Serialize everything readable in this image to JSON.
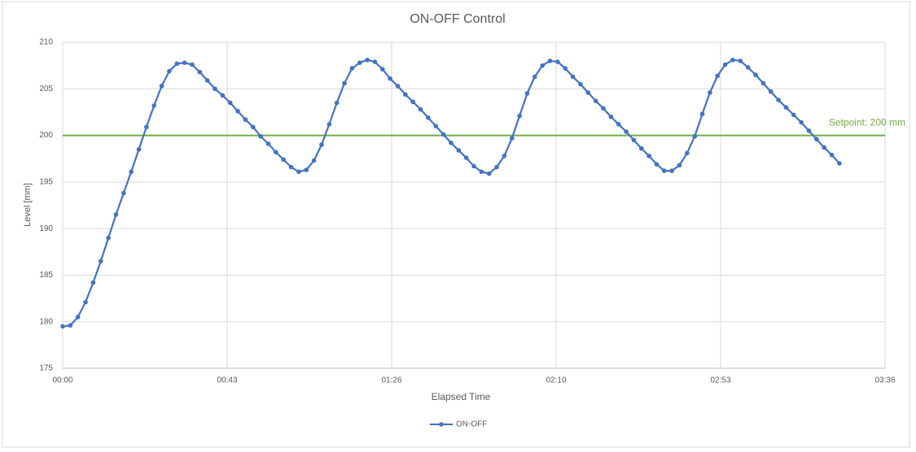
{
  "chart_data": {
    "type": "line",
    "title": "ON-OFF Control",
    "x_label": "Elapsed Time",
    "y_label": "Level [mm]",
    "xlim": [
      0,
      216
    ],
    "xticks": [
      {
        "value": 0,
        "label": "00:00"
      },
      {
        "value": 43.2,
        "label": "00:43"
      },
      {
        "value": 86.4,
        "label": "01:26"
      },
      {
        "value": 129.6,
        "label": "02:10"
      },
      {
        "value": 172.8,
        "label": "02:53"
      },
      {
        "value": 216,
        "label": "03:36"
      }
    ],
    "ylim": [
      175,
      210
    ],
    "yticks": [
      175,
      180,
      185,
      190,
      195,
      200,
      205,
      210
    ],
    "grid": true,
    "legend": "bottom",
    "x": [
      0,
      2,
      4,
      6,
      8,
      10,
      12,
      14,
      16,
      18,
      20,
      22,
      24,
      26,
      28,
      30,
      32,
      34,
      36,
      38,
      40,
      42,
      44,
      46,
      48,
      50,
      52,
      54,
      56,
      58,
      60,
      62,
      64,
      66,
      68,
      70,
      72,
      74,
      76,
      78,
      80,
      82,
      84,
      86,
      88,
      90,
      92,
      94,
      96,
      98,
      100,
      102,
      104,
      106,
      108,
      110,
      112,
      114,
      116,
      118,
      120,
      122,
      124,
      126,
      128,
      130,
      132,
      134,
      136,
      138,
      140,
      142,
      144,
      146,
      148,
      150,
      152,
      154,
      156,
      158,
      160,
      162,
      164,
      166,
      168,
      170,
      172,
      174,
      176,
      178,
      180,
      182,
      184,
      186,
      188,
      190,
      192,
      194,
      196,
      198,
      200,
      202,
      204
    ],
    "series": [
      {
        "name": "ON-OFF",
        "color": "#4472c4",
        "values": [
          179.5,
          179.6,
          180.5,
          182.1,
          184.2,
          186.5,
          189.0,
          191.5,
          193.8,
          196.1,
          198.5,
          200.9,
          203.2,
          205.3,
          206.9,
          207.7,
          207.8,
          207.6,
          206.8,
          205.9,
          205.0,
          204.3,
          203.5,
          202.6,
          201.7,
          200.9,
          199.9,
          199.1,
          198.2,
          197.4,
          196.6,
          196.1,
          196.3,
          197.3,
          199.0,
          201.2,
          203.5,
          205.6,
          207.2,
          207.8,
          208.1,
          207.9,
          207.1,
          206.1,
          205.3,
          204.4,
          203.6,
          202.8,
          201.9,
          201.0,
          200.1,
          199.2,
          198.4,
          197.6,
          196.7,
          196.1,
          195.9,
          196.6,
          197.8,
          199.7,
          202.1,
          204.5,
          206.3,
          207.5,
          208.0,
          207.9,
          207.2,
          206.3,
          205.5,
          204.6,
          203.7,
          202.9,
          202.0,
          201.2,
          200.4,
          199.5,
          198.6,
          197.8,
          196.9,
          196.2,
          196.2,
          196.8,
          198.1,
          199.9,
          202.3,
          204.6,
          206.4,
          207.6,
          208.1,
          208.0,
          207.3,
          206.5,
          205.6,
          204.7,
          203.8,
          203.0,
          202.2,
          201.4,
          200.5,
          199.6,
          198.7,
          197.9,
          197.0
        ]
      }
    ],
    "setpoint": 200,
    "setpoint_label": "Setpoint: 200 mm",
    "setpoint_color": "#70ad47"
  }
}
